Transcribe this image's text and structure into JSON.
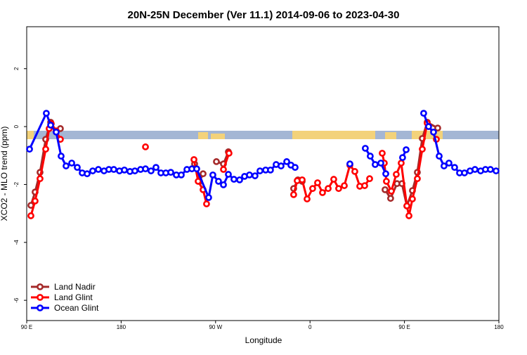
{
  "chart_data": {
    "type": "line",
    "title": "20N-25N December (Ver 11.1)   2014-09-06 to 2023-04-30",
    "xlabel": "Longitude",
    "ylabel": "XCO2 - MLO trend (ppm)",
    "xlim": [
      90,
      540
    ],
    "ylim": [
      -6.7,
      3.45
    ],
    "xticks": [
      {
        "value": 90,
        "label": "90 E"
      },
      180,
      {
        "value": 270,
        "label": "90 W"
      },
      {
        "value": 360,
        "label": "0"
      },
      {
        "value": 450,
        "label": "90 E"
      },
      {
        "value": 540,
        "label": "180"
      }
    ],
    "yticks": [
      -6,
      -4,
      -2,
      0,
      2
    ],
    "legend": "bottomleft",
    "series": [
      {
        "name": "Land Nadir",
        "color": "#a52a2a",
        "x": [
          94.0,
          98.0,
          102.7,
          108.1,
          112.8,
          118.1,
          122.1,
          200,
          250.0,
          254.7,
          258.1,
          265,
          270.8,
          277.5,
          282.2,
          300,
          344.4,
          348.5,
          352.5,
          400,
          431.5,
          436.8,
          442.9,
          447.6,
          452.3,
          457.6,
          462.3,
          467.0,
          471.7,
          481.7
        ],
        "values": [
          -2.72,
          -2.26,
          -1.58,
          -0.44,
          0.15,
          -0.15,
          -0.07,
          null,
          -1.29,
          -1.89,
          -1.63,
          null,
          -1.21,
          -1.29,
          -0.87,
          null,
          -2.14,
          -1.84,
          -1.89,
          null,
          -2.18,
          -2.48,
          -1.97,
          -1.97,
          -2.74,
          -2.21,
          -1.58,
          -0.41,
          0.15,
          -0.05
        ]
      },
      {
        "name": "Land Glint",
        "color": "#ff0000",
        "x": [
          94.0,
          98.0,
          102.7,
          108.1,
          111.4,
          113.4,
          118.1,
          122.1,
          150,
          203.2,
          240,
          249.4,
          253.4,
          258.1,
          261.4,
          265,
          277.5,
          282.8,
          300,
          344.4,
          347.8,
          352.5,
          357.2,
          362.5,
          367.2,
          371.9,
          377.3,
          382.6,
          387.3,
          392.7,
          398.0,
          402.7,
          407.4,
          412.1,
          416.8,
          422,
          428.8,
          430.8,
          432.8,
          437.5,
          442.2,
          446.9,
          452.3,
          454.3,
          457.6,
          462.3,
          467.0,
          471.7,
          480.4
        ],
        "values": [
          -3.08,
          -2.57,
          -1.8,
          -0.78,
          -0.07,
          0.1,
          -0.15,
          -0.44,
          null,
          -0.7,
          null,
          -1.14,
          -1.89,
          -2.18,
          -2.67,
          null,
          -1.48,
          -0.92,
          null,
          -2.35,
          -1.87,
          -1.84,
          -2.5,
          -2.14,
          -1.94,
          -2.28,
          -2.14,
          -1.82,
          -2.14,
          -2.04,
          -1.33,
          -1.55,
          -2.06,
          -2.04,
          -1.8,
          null,
          -0.92,
          -1.26,
          -1.89,
          -2.23,
          -1.65,
          -1.26,
          -2.74,
          -3.08,
          -2.5,
          -1.8,
          -0.78,
          0.12,
          -0.44
        ]
      },
      {
        "name": "Ocean Glint",
        "color": "#0000ff",
        "x": [
          92.7,
          108.7,
          112.8,
          118.1,
          122.8,
          127.5,
          132.9,
          138.2,
          142.9,
          147.6,
          152.9,
          158.3,
          163.7,
          168.3,
          173.0,
          178.4,
          183.1,
          188.4,
          193.1,
          198.5,
          203.2,
          208.5,
          213.2,
          217.9,
          222.6,
          227.3,
          232.6,
          237.3,
          242.7,
          247.4,
          252.0,
          263.4,
          267.4,
          272.8,
          277.5,
          282.2,
          287.5,
          292.9,
          297.6,
          302.3,
          307.6,
          312.3,
          317.7,
          322.3,
          327.7,
          332.4,
          337.8,
          341.8,
          345.8,
          370,
          398.0,
          405,
          412.7,
          417.4,
          422.1,
          427.5,
          432.2,
          440,
          448.2,
          451.6,
          460,
          468.3,
          473.0,
          477.7,
          483.1,
          487.7,
          492.4,
          497.8,
          502.5,
          507.2,
          512.5,
          517.2,
          522.6,
          527.2,
          531.9,
          537.3
        ],
        "values": [
          -0.78,
          0.46,
          0.05,
          -0.19,
          -1.02,
          -1.36,
          -1.26,
          -1.41,
          -1.6,
          -1.63,
          -1.53,
          -1.48,
          -1.53,
          -1.48,
          -1.48,
          -1.53,
          -1.5,
          -1.55,
          -1.53,
          -1.48,
          -1.46,
          -1.53,
          -1.41,
          -1.6,
          -1.6,
          -1.58,
          -1.67,
          -1.67,
          -1.48,
          -1.46,
          -1.46,
          -2.45,
          -1.67,
          -1.89,
          -2.01,
          -1.65,
          -1.82,
          -1.84,
          -1.72,
          -1.67,
          -1.7,
          -1.53,
          -1.5,
          -1.5,
          -1.31,
          -1.36,
          -1.21,
          -1.33,
          -1.41,
          null,
          -1.29,
          null,
          -0.75,
          -1.02,
          -1.31,
          -1.26,
          -1.63,
          null,
          -1.07,
          -0.8,
          null,
          0.46,
          0,
          -0.19,
          -1.02,
          -1.36,
          -1.26,
          -1.41,
          -1.6,
          -1.6,
          -1.53,
          -1.48,
          -1.53,
          -1.48,
          -1.48,
          -1.53
        ]
      }
    ]
  }
}
